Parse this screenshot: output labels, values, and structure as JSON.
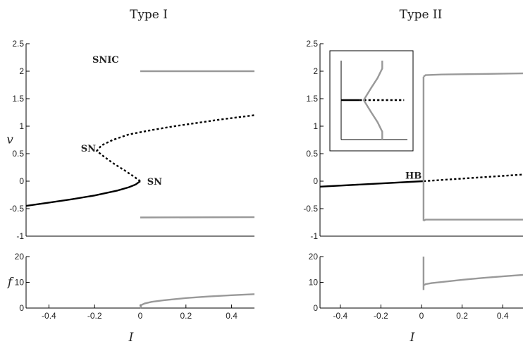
{
  "chart_data": [
    {
      "panel": "type1-v",
      "title": "Type I",
      "type": "line",
      "ylabel": "v",
      "xlim": [
        -0.5,
        0.5
      ],
      "ylim": [
        -1,
        2.5
      ],
      "yticks": [
        "-1",
        "-0.5",
        "0",
        "0.5",
        "1",
        "1.5",
        "2",
        "2.5"
      ],
      "series": [
        {
          "style": "stable",
          "points": [
            [
              -0.5,
              -0.45
            ],
            [
              -0.4,
              -0.39
            ],
            [
              -0.3,
              -0.33
            ],
            [
              -0.2,
              -0.26
            ],
            [
              -0.15,
              -0.215
            ],
            [
              -0.1,
              -0.17
            ],
            [
              -0.05,
              -0.11
            ],
            [
              -0.02,
              -0.06
            ],
            [
              0,
              0
            ]
          ]
        },
        {
          "style": "unstable",
          "points": [
            [
              0,
              0
            ],
            [
              -0.03,
              0.09
            ],
            [
              -0.07,
              0.2
            ],
            [
              -0.12,
              0.33
            ],
            [
              -0.16,
              0.45
            ],
            [
              -0.19,
              0.55
            ],
            [
              -0.17,
              0.65
            ],
            [
              -0.12,
              0.75
            ],
            [
              -0.05,
              0.85
            ],
            [
              0.05,
              0.93
            ],
            [
              0.15,
              1.0
            ],
            [
              0.25,
              1.06
            ],
            [
              0.35,
              1.12
            ],
            [
              0.5,
              1.2
            ]
          ]
        },
        {
          "style": "osc",
          "points": [
            [
              0,
              2.0
            ],
            [
              0.5,
              2.0
            ]
          ]
        },
        {
          "style": "osc",
          "points": [
            [
              0,
              -0.66
            ],
            [
              0.5,
              -0.655
            ]
          ]
        }
      ],
      "annotations": [
        {
          "text": "SNIC",
          "x": -0.21,
          "y": 2.22
        },
        {
          "text": "SN",
          "x": -0.26,
          "y": 0.6
        },
        {
          "text": "SN",
          "x": 0.03,
          "y": 0.0
        }
      ]
    },
    {
      "panel": "type1-f",
      "type": "line",
      "ylabel": "f",
      "xlabel": "I",
      "xlim": [
        -0.5,
        0.5
      ],
      "ylim": [
        0,
        20
      ],
      "yticks": [
        "0",
        "10",
        "20"
      ],
      "xticks": [
        "-0.4",
        "-0.2",
        "0",
        "0.2",
        "0.4"
      ],
      "series": [
        {
          "style": "osc",
          "points": [
            [
              0,
              0
            ],
            [
              0.005,
              1.2
            ],
            [
              0.02,
              1.8
            ],
            [
              0.05,
              2.4
            ],
            [
              0.1,
              3.0
            ],
            [
              0.2,
              3.9
            ],
            [
              0.3,
              4.5
            ],
            [
              0.4,
              5.0
            ],
            [
              0.5,
              5.4
            ]
          ]
        }
      ]
    },
    {
      "panel": "type2-v",
      "title": "Type II",
      "type": "line",
      "xlim": [
        -0.5,
        0.5
      ],
      "ylim": [
        -1,
        2.5
      ],
      "yticks": [
        "-1",
        "-0.5",
        "0",
        "0.5",
        "1",
        "1.5",
        "2",
        "2.5"
      ],
      "series": [
        {
          "style": "stable",
          "points": [
            [
              -0.5,
              -0.1
            ],
            [
              0.01,
              0.0
            ]
          ]
        },
        {
          "style": "unstable",
          "points": [
            [
              0.01,
              0.0
            ],
            [
              0.5,
              0.12
            ]
          ]
        },
        {
          "style": "osc",
          "points": [
            [
              0.01,
              1.9
            ],
            [
              0.02,
              1.93
            ],
            [
              0.1,
              1.94
            ],
            [
              0.3,
              1.95
            ],
            [
              0.5,
              1.96
            ]
          ]
        },
        {
          "style": "osc",
          "points": [
            [
              0.01,
              -0.72
            ],
            [
              0.02,
              -0.7
            ],
            [
              0.2,
              -0.7
            ],
            [
              0.5,
              -0.7
            ]
          ]
        },
        {
          "style": "osc",
          "points": [
            [
              0.01,
              -0.72
            ],
            [
              0.01,
              1.9
            ]
          ]
        }
      ],
      "annotations": [
        {
          "text": "HB",
          "x": -0.08,
          "y": 0.11
        }
      ],
      "inset": {
        "series": [
          {
            "style": "stable",
            "points": [
              [
                0.0,
                0.5
              ],
              [
                0.28,
                0.5
              ]
            ]
          },
          {
            "style": "unstable",
            "points": [
              [
                0.28,
                0.5
              ],
              [
                0.95,
                0.5
              ]
            ]
          },
          {
            "style": "osc",
            "points": [
              [
                0.62,
                1.0
              ],
              [
                0.62,
                0.9
              ],
              [
                0.55,
                0.78
              ],
              [
                0.45,
                0.65
              ],
              [
                0.34,
                0.5
              ],
              [
                0.45,
                0.35
              ],
              [
                0.55,
                0.22
              ],
              [
                0.62,
                0.1
              ],
              [
                0.62,
                0.0
              ]
            ]
          }
        ]
      }
    },
    {
      "panel": "type2-f",
      "type": "line",
      "xlabel": "I",
      "xlim": [
        -0.5,
        0.5
      ],
      "ylim": [
        0,
        20
      ],
      "yticks": [
        "0",
        "10",
        "20"
      ],
      "xticks": [
        "-0.4",
        "-0.2",
        "0",
        "0.2",
        "0.4"
      ],
      "series": [
        {
          "style": "osc",
          "points": [
            [
              0.01,
              20
            ],
            [
              0.01,
              7
            ]
          ]
        },
        {
          "style": "osc",
          "points": [
            [
              0.01,
              8.8
            ],
            [
              0.02,
              9.3
            ],
            [
              0.05,
              9.7
            ],
            [
              0.1,
              10.1
            ],
            [
              0.2,
              11.0
            ],
            [
              0.3,
              11.7
            ],
            [
              0.4,
              12.3
            ],
            [
              0.5,
              12.9
            ]
          ]
        }
      ]
    }
  ]
}
